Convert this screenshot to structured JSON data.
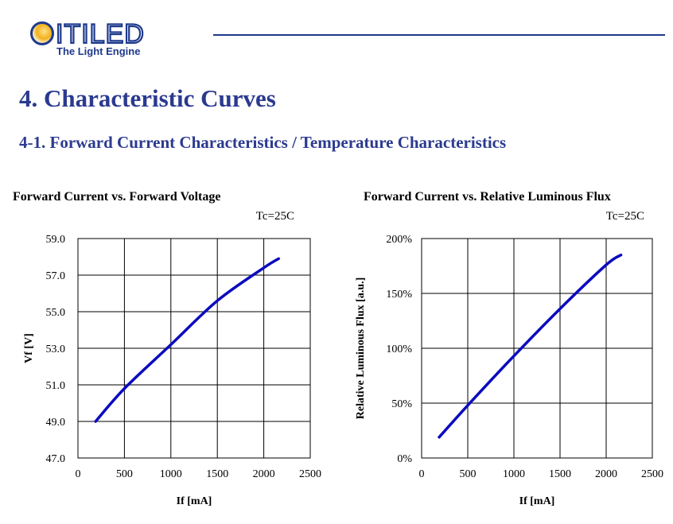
{
  "header": {
    "logo_text": "CITILED",
    "tagline": "The Light Engine",
    "brand_color": "#1e3a8c",
    "accent_color": "#f2b11c"
  },
  "section_title": "4. Characteristic Curves",
  "subsection_title": "4-1. Forward Current Characteristics / Temperature Characteristics",
  "chart_data": [
    {
      "type": "line",
      "title": "Forward Current vs. Forward Voltage",
      "note": "Tc=25C",
      "xlabel": "If [mA]",
      "ylabel": "Vf [V]",
      "xlim": [
        0,
        2500
      ],
      "ylim": [
        47.0,
        59.0
      ],
      "x_ticks": [
        "0",
        "500",
        "1000",
        "1500",
        "2000",
        "2500"
      ],
      "y_ticks": [
        "47.0",
        "49.0",
        "51.0",
        "53.0",
        "55.0",
        "57.0",
        "59.0"
      ],
      "grid": true,
      "series": [
        {
          "color": "#0b0bbf",
          "x": [
            190,
            500,
            1000,
            1500,
            2000,
            2160
          ],
          "y": [
            49.0,
            50.8,
            53.2,
            55.6,
            57.4,
            57.9
          ]
        }
      ]
    },
    {
      "type": "line",
      "title": "Forward Current vs. Relative Luminous Flux",
      "note": "Tc=25C",
      "xlabel": "If [mA]",
      "ylabel": "Relative Luminous Flux [a.u.]",
      "xlim": [
        0,
        2500
      ],
      "ylim": [
        0,
        200
      ],
      "x_ticks": [
        "0",
        "500",
        "1000",
        "1500",
        "2000",
        "2500"
      ],
      "y_ticks": [
        "0%",
        "50%",
        "100%",
        "150%",
        "200%"
      ],
      "grid": true,
      "series": [
        {
          "color": "#0b0bbf",
          "x": [
            190,
            500,
            1000,
            1500,
            2000,
            2160
          ],
          "y": [
            19,
            48,
            93,
            136,
            176,
            185
          ]
        }
      ]
    }
  ]
}
